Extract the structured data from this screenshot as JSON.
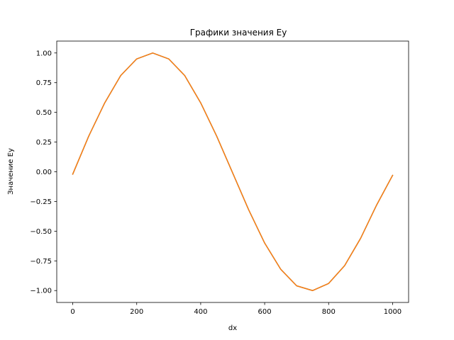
{
  "chart_data": {
    "type": "line",
    "title": "Графики значения Ey",
    "xlabel": "dx",
    "ylabel": "Значение Ey",
    "xlim": [
      -50,
      1050
    ],
    "ylim": [
      -1.1,
      1.1
    ],
    "xticks": [
      0,
      200,
      400,
      600,
      800,
      1000
    ],
    "xtick_labels": [
      "0",
      "200",
      "400",
      "600",
      "800",
      "1000"
    ],
    "yticks": [
      1.0,
      0.75,
      0.5,
      0.25,
      0.0,
      -0.25,
      -0.5,
      -0.75,
      -1.0
    ],
    "ytick_labels": [
      "1.00",
      "0.75",
      "0.50",
      "0.25",
      "0.00",
      "−0.25",
      "−0.50",
      "−0.75",
      "−1.00"
    ],
    "grid": false,
    "legend": "none",
    "x": [
      0,
      50,
      100,
      150,
      200,
      250,
      300,
      350,
      400,
      450,
      500,
      550,
      600,
      650,
      700,
      750,
      800,
      850,
      900,
      950,
      1000
    ],
    "series": [
      {
        "name": "series-1",
        "color": "#1f77b4",
        "values": [
          -0.02,
          0.3,
          0.58,
          0.81,
          0.95,
          1.0,
          0.95,
          0.81,
          0.58,
          0.3,
          -0.01,
          -0.32,
          -0.6,
          -0.82,
          -0.96,
          -1.0,
          -0.94,
          -0.79,
          -0.56,
          -0.28,
          -0.03
        ]
      },
      {
        "name": "series-2",
        "color": "#ff7f0e",
        "values": [
          -0.02,
          0.3,
          0.58,
          0.81,
          0.95,
          1.0,
          0.95,
          0.81,
          0.58,
          0.3,
          -0.01,
          -0.32,
          -0.6,
          -0.82,
          -0.96,
          -1.0,
          -0.94,
          -0.79,
          -0.56,
          -0.28,
          -0.03
        ]
      }
    ]
  }
}
